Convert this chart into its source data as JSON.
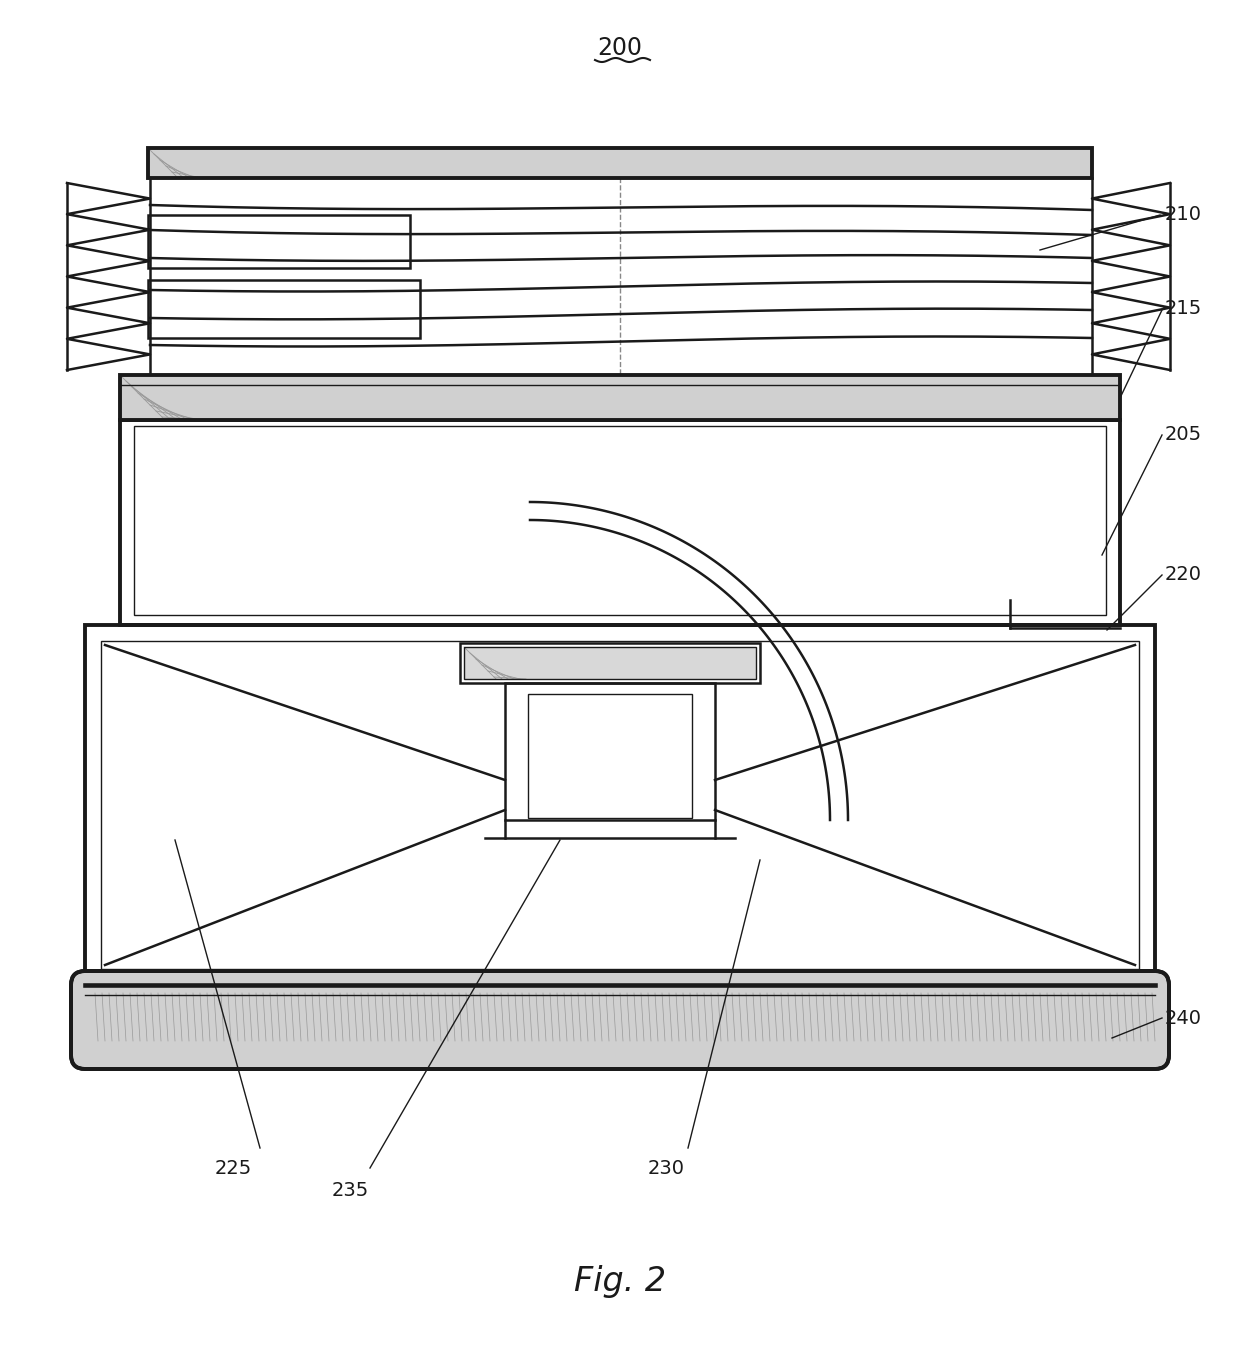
{
  "line_color": "#1a1a1a",
  "bg_color": "#ffffff",
  "lw": 1.8,
  "lw2": 2.8,
  "lw_thin": 1.0
}
